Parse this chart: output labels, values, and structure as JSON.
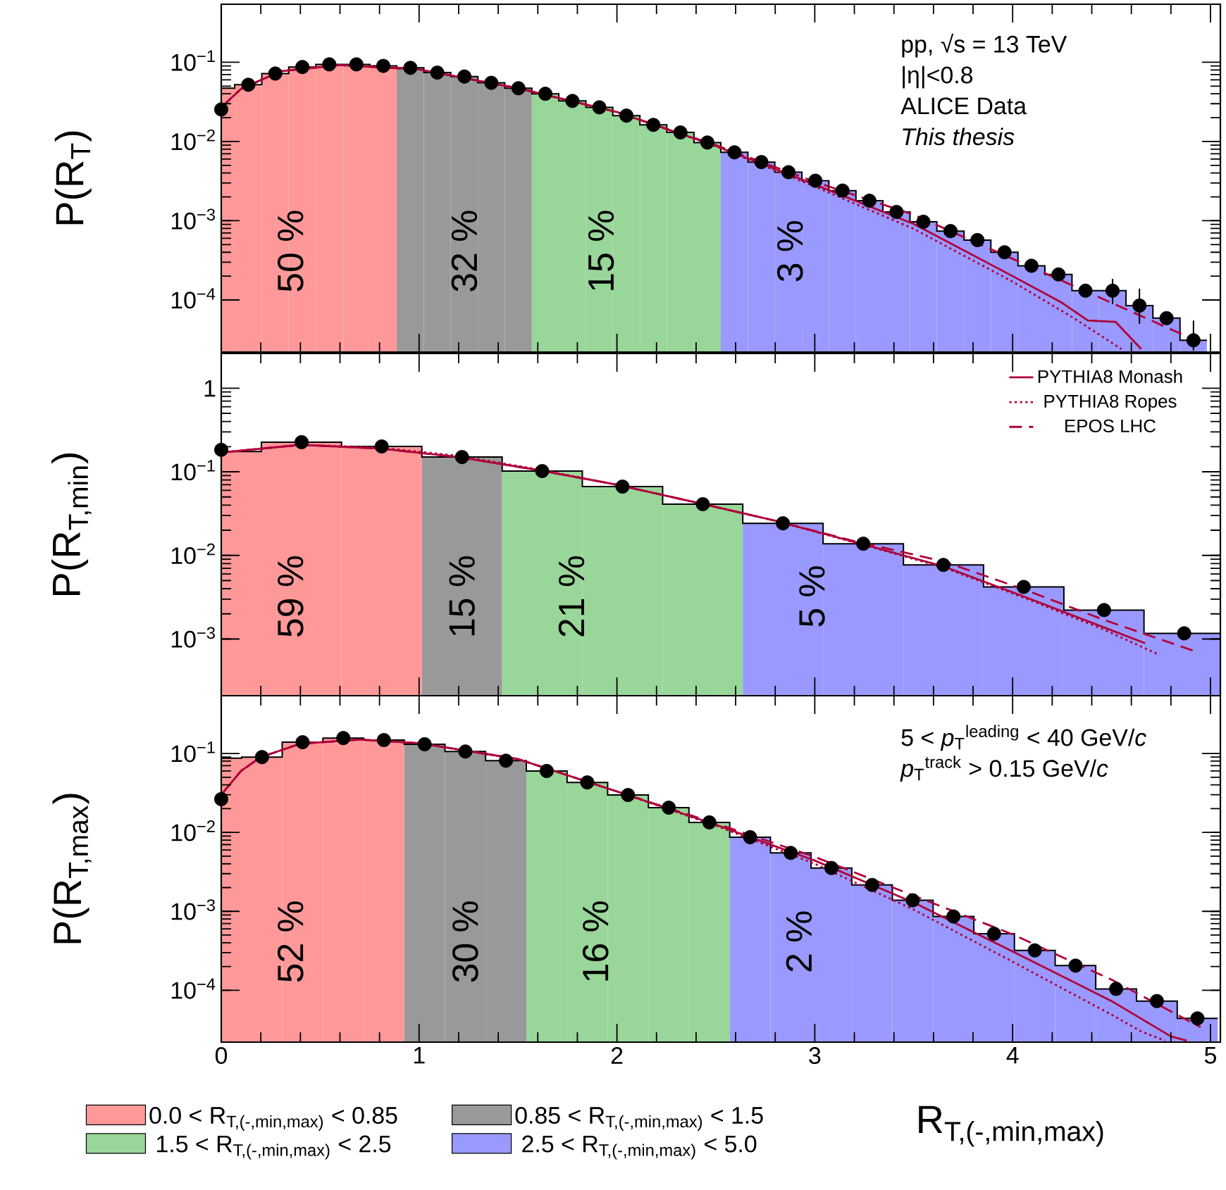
{
  "chart_data": [
    {
      "type": "histogram",
      "ylabel": "P(R$_{T}$)",
      "log": "y",
      "xlim": [
        0,
        5.05
      ],
      "ylim": [
        2.2e-05,
        0.54
      ],
      "xticks": [
        0,
        1,
        2,
        3,
        4,
        5
      ],
      "yticks": [
        {
          "value": 0.0001,
          "label": "10$^{−4}$"
        },
        {
          "value": 0.001,
          "label": "10$^{−3}$"
        },
        {
          "value": 0.01,
          "label": "10$^{−2}$"
        },
        {
          "value": 0.1,
          "label": "10$^{−1}$"
        }
      ],
      "tick_labels": "y",
      "annotations": [
        "pp, √s = 13 TeV",
        "|η|<0.8",
        "ALICE Data",
        "*This thesis*",
        "50 %",
        "32 %",
        "15 %",
        "3 %"
      ],
      "series": [
        {
          "type": "histogram",
          "color": "#ff9999",
          "bins": [
            0,
            0.068,
            0.205,
            0.341,
            0.478,
            0.614,
            0.751,
            0.887
          ],
          "values": [
            0.047,
            0.052,
            0.072,
            0.087,
            0.094,
            0.094,
            0.09
          ]
        },
        {
          "type": "histogram",
          "color": "#999999",
          "bins": [
            0.887,
            1.024,
            1.16,
            1.297,
            1.433,
            1.57
          ],
          "values": [
            0.085,
            0.074,
            0.066,
            0.055,
            0.047
          ]
        },
        {
          "type": "histogram",
          "color": "#99d699",
          "bins": [
            1.57,
            1.706,
            1.843,
            1.979,
            2.116,
            2.252,
            2.389,
            2.525
          ],
          "values": [
            0.04,
            0.0325,
            0.027,
            0.0212,
            0.0162,
            0.013,
            0.0097
          ]
        },
        {
          "type": "histogram",
          "color": "#9999ff",
          "bins": [
            2.525,
            2.662,
            2.798,
            2.935,
            3.071,
            3.208,
            3.344,
            3.481,
            3.617,
            3.754,
            3.89,
            4.027,
            4.163,
            4.3,
            4.436,
            4.573,
            4.709,
            4.846,
            4.982
          ],
          "values": [
            0.0073,
            0.0055,
            0.0041,
            0.0032,
            0.0024,
            0.00179,
            0.00129,
            0.00097,
            0.00074,
            0.00057,
            0.0004,
            0.00027,
            0.00021,
            0.000131,
            0.000131,
            8.5e-05,
            5.9e-05,
            3.1e-05
          ]
        },
        {
          "type": "step",
          "color": "#000000",
          "x": [
            0,
            0.068,
            0.205,
            0.341,
            0.478,
            0.614,
            0.751,
            0.887,
            1.024,
            1.16,
            1.297,
            1.433,
            1.57,
            1.706,
            1.843,
            1.979,
            2.116,
            2.252,
            2.389,
            2.525,
            2.662,
            2.798,
            2.935,
            3.071,
            3.208,
            3.344,
            3.481,
            3.617,
            3.754,
            3.89,
            4.027,
            4.163,
            4.3,
            4.436,
            4.573,
            4.709,
            4.846,
            4.982
          ],
          "values": [
            0.047,
            0.052,
            0.072,
            0.087,
            0.094,
            0.094,
            0.09,
            0.085,
            0.074,
            0.066,
            0.055,
            0.047,
            0.04,
            0.0325,
            0.027,
            0.0212,
            0.0162,
            0.013,
            0.0097,
            0.0073,
            0.0055,
            0.0041,
            0.0032,
            0.0024,
            0.00179,
            0.00129,
            0.00097,
            0.00074,
            0.00057,
            0.0004,
            0.00027,
            0.00021,
            0.000131,
            0.000131,
            8.5e-05,
            5.9e-05,
            3.1e-05,
            3.1e-05
          ]
        },
        {
          "type": "scatter",
          "color": "#000000",
          "marker": "circle",
          "x": [
            0,
            0.137,
            0.273,
            0.41,
            0.546,
            0.683,
            0.819,
            0.956,
            1.092,
            1.229,
            1.365,
            1.502,
            1.638,
            1.775,
            1.911,
            2.048,
            2.184,
            2.321,
            2.457,
            2.594,
            2.73,
            2.867,
            3.003,
            3.14,
            3.276,
            3.413,
            3.549,
            3.686,
            3.822,
            3.959,
            4.095,
            4.232,
            4.368,
            4.505,
            4.641,
            4.778,
            4.914
          ],
          "values": [
            0.0254,
            0.052,
            0.072,
            0.087,
            0.094,
            0.094,
            0.09,
            0.085,
            0.074,
            0.066,
            0.055,
            0.047,
            0.04,
            0.0325,
            0.027,
            0.0212,
            0.0162,
            0.013,
            0.0097,
            0.0073,
            0.0055,
            0.0041,
            0.0032,
            0.0024,
            0.00179,
            0.00129,
            0.00097,
            0.00074,
            0.00057,
            0.0004,
            0.00027,
            0.00021,
            0.000131,
            0.000131,
            8.5e-05,
            5.9e-05,
            3.1e-05
          ],
          "errors": [
            null,
            null,
            null,
            null,
            null,
            null,
            null,
            null,
            null,
            null,
            null,
            null,
            null,
            null,
            null,
            null,
            null,
            null,
            null,
            null,
            null,
            null,
            null,
            null,
            null,
            null,
            null,
            null,
            null,
            null,
            null,
            null,
            null,
            [
              8.9e-05,
              0.000185
            ],
            [
              5e-05,
              0.000139
            ],
            null,
            [
              2.3e-05,
              5.5e-05
            ]
          ]
        },
        {
          "type": "line",
          "color": "#b0003a",
          "line_style": "solid",
          "x": [
            0,
            0.1,
            0.3,
            0.6,
            1.0,
            1.5,
            2.0,
            2.5,
            3.0,
            3.5,
            4.0,
            4.25,
            4.38,
            4.52,
            4.65
          ],
          "values": [
            0.027,
            0.046,
            0.077,
            0.092,
            0.081,
            0.047,
            0.0235,
            0.0088,
            0.00286,
            0.00091,
            0.0002,
            9.2e-05,
            5.5e-05,
            5.3e-05,
            2.4e-05
          ]
        },
        {
          "type": "line",
          "color": "#b0003a",
          "line_style": "dotted",
          "x": [
            0,
            0.1,
            0.3,
            0.6,
            1.0,
            1.5,
            2.0,
            2.5,
            3.0,
            3.5,
            4.0,
            4.3,
            4.55
          ],
          "values": [
            0.027,
            0.046,
            0.077,
            0.092,
            0.081,
            0.047,
            0.0235,
            0.0087,
            0.0027,
            0.00079,
            0.00017,
            6.1e-05,
            2.4e-05
          ]
        },
        {
          "type": "line",
          "color": "#b0003a",
          "line_style": "dashed",
          "x": [
            0,
            0.1,
            0.3,
            0.6,
            1.0,
            1.5,
            2.0,
            2.5,
            3.0,
            3.5,
            4.0,
            4.5,
            4.95
          ],
          "values": [
            0.027,
            0.046,
            0.077,
            0.092,
            0.081,
            0.047,
            0.0235,
            0.009,
            0.0031,
            0.00119,
            0.00033,
            9.2e-05,
            2.9e-05
          ]
        }
      ]
    },
    {
      "type": "histogram",
      "ylabel": "P(R$_{T,min}$)",
      "log": "y",
      "xlim": [
        0,
        5.05
      ],
      "ylim": [
        0.00021,
        2.6
      ],
      "xticks": [
        0,
        1,
        2,
        3,
        4,
        5
      ],
      "yticks": [
        {
          "value": 0.001,
          "label": "10$^{−3}$"
        },
        {
          "value": 0.01,
          "label": "10$^{−2}$"
        },
        {
          "value": 0.1,
          "label": "10$^{−1}$"
        },
        1
      ],
      "tick_labels": "y",
      "legend": "top right",
      "annotations": [
        "59 %",
        "15 %",
        "21 %",
        "5 %"
      ],
      "series": [
        {
          "type": "histogram",
          "color": "#ff9999",
          "bins": [
            0,
            0.203,
            0.608,
            1.014
          ],
          "values": [
            0.175,
            0.226,
            0.201
          ]
        },
        {
          "type": "histogram",
          "color": "#999999",
          "bins": [
            1.014,
            1.42
          ],
          "values": [
            0.15
          ]
        },
        {
          "type": "histogram",
          "color": "#99d699",
          "bins": [
            1.42,
            1.825,
            2.231,
            2.636
          ],
          "values": [
            0.102,
            0.0665,
            0.041
          ]
        },
        {
          "type": "histogram",
          "color": "#9999ff",
          "bins": [
            2.636,
            3.042,
            3.448,
            3.853,
            4.259,
            4.664,
            5.05
          ],
          "values": [
            0.0242,
            0.0138,
            0.0077,
            0.0042,
            0.00222,
            0.00117
          ]
        },
        {
          "type": "step",
          "color": "#000000",
          "x": [
            0,
            0.203,
            0.608,
            1.014,
            1.42,
            1.825,
            2.231,
            2.636,
            3.042,
            3.448,
            3.853,
            4.259,
            4.664,
            5.05
          ],
          "values": [
            0.175,
            0.226,
            0.201,
            0.15,
            0.102,
            0.0665,
            0.041,
            0.0242,
            0.0138,
            0.0077,
            0.0042,
            0.00222,
            0.00117,
            0.00117
          ]
        },
        {
          "type": "scatter",
          "color": "#000000",
          "marker": "circle",
          "x": [
            0,
            0.406,
            0.811,
            1.217,
            1.622,
            2.028,
            2.434,
            2.839,
            3.245,
            3.65,
            4.056,
            4.462,
            4.867
          ],
          "values": [
            0.183,
            0.226,
            0.201,
            0.15,
            0.102,
            0.0665,
            0.041,
            0.0242,
            0.0138,
            0.0077,
            0.0042,
            0.00222,
            0.00117
          ]
        },
        {
          "type": "line",
          "name": "PYTHIA8 Monash",
          "color": "#b0003a",
          "line_style": "solid",
          "x": [
            0,
            0.4,
            0.8,
            1.2,
            1.6,
            2.0,
            2.4,
            2.8,
            3.2,
            3.65,
            4.06,
            4.46,
            4.67
          ],
          "values": [
            0.17,
            0.21,
            0.19,
            0.15,
            0.105,
            0.07,
            0.043,
            0.026,
            0.0145,
            0.0074,
            0.0032,
            0.00138,
            0.00089
          ]
        },
        {
          "type": "line",
          "name": "PYTHIA8 Ropes",
          "color": "#b0003a",
          "line_style": "dotted",
          "x": [
            0,
            0.4,
            0.8,
            1.2,
            1.6,
            2.0,
            2.4,
            2.8,
            3.2,
            3.65,
            4.06,
            4.46,
            4.74
          ],
          "values": [
            0.17,
            0.21,
            0.195,
            0.155,
            0.107,
            0.07,
            0.043,
            0.026,
            0.0143,
            0.0072,
            0.0031,
            0.0013,
            0.00065
          ]
        },
        {
          "type": "line",
          "name": "EPOS LHC",
          "color": "#b0003a",
          "line_style": "dashed",
          "x": [
            0,
            0.4,
            0.8,
            1.2,
            1.6,
            2.0,
            2.4,
            2.8,
            3.2,
            3.65,
            4.06,
            4.46,
            4.91
          ],
          "values": [
            0.17,
            0.21,
            0.19,
            0.15,
            0.105,
            0.07,
            0.043,
            0.026,
            0.0148,
            0.0085,
            0.0039,
            0.0017,
            0.00073
          ]
        }
      ]
    },
    {
      "type": "histogram",
      "ylabel": "P(R$_{T,max}$)",
      "xlabel": "R$_{T,(-,min,max)}$",
      "log": "y",
      "xlim": [
        0,
        5.05
      ],
      "ylim": [
        2.2e-05,
        0.54
      ],
      "xticks": [
        0,
        1,
        2,
        3,
        4,
        5
      ],
      "yticks": [
        {
          "value": 0.0001,
          "label": "10$^{−4}$"
        },
        {
          "value": 0.001,
          "label": "10$^{−3}$"
        },
        {
          "value": 0.01,
          "label": "10$^{−2}$"
        },
        {
          "value": 0.1,
          "label": "10$^{−1}$"
        }
      ],
      "legend": "bottom",
      "annotations": [
        "5  < *p*$_{T}$$^{leading}$ < 40 GeV/*c*",
        "*p*$_{T}$$^{track}$ > 0.15 GeV/*c*",
        "52 %",
        "30 %",
        "16 %",
        "2 %"
      ],
      "series": [
        {
          "type": "histogram",
          "name": "0.0 < R$_{T,(-,min,max)}$ < 0.85",
          "color": "#ff9999",
          "bins": [
            0,
            0.103,
            0.308,
            0.514,
            0.72,
            0.925
          ],
          "values": [
            0.087,
            0.09,
            0.139,
            0.157,
            0.148
          ]
        },
        {
          "type": "histogram",
          "name": "0.85 < R$_{T,(-,min,max)}$ < 1.5",
          "color": "#999999",
          "bins": [
            0.925,
            1.131,
            1.336,
            1.542
          ],
          "values": [
            0.131,
            0.106,
            0.081
          ]
        },
        {
          "type": "histogram",
          "name": "1.5 < R$_{T,(-,min,max)}$ < 2.5",
          "color": "#99d699",
          "bins": [
            1.542,
            1.748,
            1.953,
            2.159,
            2.364,
            2.57
          ],
          "values": [
            0.06,
            0.043,
            0.0298,
            0.0206,
            0.0134
          ]
        },
        {
          "type": "histogram",
          "name": "2.5 < R$_{T,(-,min,max)}$ < 5.0",
          "color": "#9999ff",
          "bins": [
            2.57,
            2.776,
            2.981,
            3.187,
            3.392,
            3.598,
            3.804,
            4.009,
            4.215,
            4.42,
            4.626,
            4.832,
            5.037
          ],
          "values": [
            0.0087,
            0.0055,
            0.00354,
            0.00216,
            0.00138,
            0.00086,
            0.00052,
            0.00032,
            0.000205,
            0.000104,
            7.3e-05,
            4.4e-05
          ]
        },
        {
          "type": "step",
          "color": "#000000",
          "x": [
            0,
            0.103,
            0.308,
            0.514,
            0.72,
            0.925,
            1.131,
            1.336,
            1.542,
            1.748,
            1.953,
            2.159,
            2.364,
            2.57,
            2.776,
            2.981,
            3.187,
            3.392,
            3.598,
            3.804,
            4.009,
            4.215,
            4.42,
            4.626,
            4.832,
            5.037
          ],
          "values": [
            0.087,
            0.09,
            0.139,
            0.157,
            0.148,
            0.131,
            0.106,
            0.081,
            0.06,
            0.043,
            0.0298,
            0.0206,
            0.0134,
            0.0087,
            0.0055,
            0.00354,
            0.00216,
            0.00138,
            0.00086,
            0.00052,
            0.00032,
            0.000205,
            0.000104,
            7.3e-05,
            4.4e-05,
            4.4e-05
          ]
        },
        {
          "type": "scatter",
          "color": "#000000",
          "marker": "circle",
          "x": [
            0,
            0.206,
            0.411,
            0.617,
            0.822,
            1.028,
            1.234,
            1.439,
            1.645,
            1.85,
            2.056,
            2.262,
            2.467,
            2.673,
            2.878,
            3.084,
            3.29,
            3.495,
            3.701,
            3.906,
            4.112,
            4.318,
            4.523,
            4.729,
            4.934
          ],
          "values": [
            0.0264,
            0.09,
            0.139,
            0.157,
            0.148,
            0.131,
            0.106,
            0.081,
            0.06,
            0.043,
            0.0298,
            0.0206,
            0.0134,
            0.0087,
            0.0055,
            0.00354,
            0.00216,
            0.00138,
            0.00086,
            0.00052,
            0.00032,
            0.000205,
            0.000104,
            7.3e-05,
            4.4e-05
          ]
        },
        {
          "type": "line",
          "color": "#b0003a",
          "line_style": "solid",
          "x": [
            0,
            0.1,
            0.2,
            0.4,
            0.7,
            1.0,
            1.5,
            2.0,
            2.5,
            3.0,
            3.5,
            4.0,
            4.5,
            4.8,
            4.88
          ],
          "values": [
            0.03,
            0.06,
            0.09,
            0.133,
            0.15,
            0.135,
            0.085,
            0.033,
            0.0125,
            0.0044,
            0.00129,
            0.00031,
            7.3e-05,
            2.6e-05,
            2.3e-05
          ]
        },
        {
          "type": "line",
          "color": "#b0003a",
          "line_style": "dotted",
          "x": [
            0,
            0.1,
            0.2,
            0.4,
            0.7,
            1.0,
            1.5,
            2.0,
            2.5,
            3.0,
            3.5,
            4.0,
            4.5,
            4.65,
            4.77
          ],
          "values": [
            0.03,
            0.06,
            0.09,
            0.133,
            0.15,
            0.135,
            0.085,
            0.033,
            0.0122,
            0.004,
            0.00105,
            0.00023,
            4.9e-05,
            3e-05,
            2.3e-05
          ]
        },
        {
          "type": "line",
          "color": "#b0003a",
          "line_style": "dashed",
          "x": [
            0,
            0.1,
            0.2,
            0.4,
            0.7,
            1.0,
            1.5,
            2.0,
            2.5,
            3.0,
            3.5,
            4.0,
            4.5,
            4.95
          ],
          "values": [
            0.03,
            0.06,
            0.09,
            0.133,
            0.15,
            0.135,
            0.085,
            0.033,
            0.013,
            0.0049,
            0.00158,
            0.00051,
            0.000136,
            3.4e-05
          ]
        }
      ]
    }
  ]
}
